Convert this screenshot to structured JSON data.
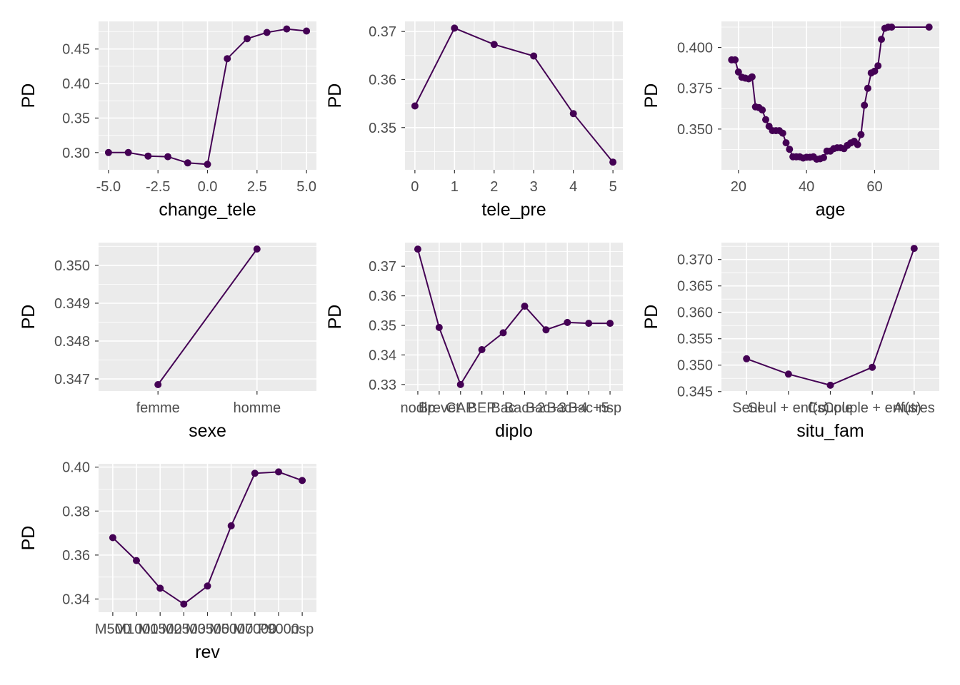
{
  "style": {
    "panel_bg": "#EBEBEB",
    "grid_major": "#FFFFFF",
    "line_color": "#440154",
    "tick_text": "#4D4D4D",
    "title_text": "#000000"
  },
  "chart_data": [
    {
      "type": "line",
      "xlabel": "change_tele",
      "ylabel": "PD",
      "x": [
        -5,
        -4,
        -3,
        -2,
        -1,
        0,
        1,
        2,
        3,
        4,
        5
      ],
      "values": [
        0.3,
        0.3,
        0.295,
        0.294,
        0.285,
        0.283,
        0.436,
        0.465,
        0.474,
        0.479,
        0.476
      ],
      "xlim": [
        -5.5,
        5.5
      ],
      "ylim": [
        0.275,
        0.49
      ],
      "xticks": [
        -5,
        -2.5,
        0,
        2.5,
        5
      ],
      "xtick_labels": [
        "-5.0",
        "-2.5",
        "0.0",
        "2.5",
        "5.0"
      ],
      "yticks": [
        0.3,
        0.35,
        0.4,
        0.45
      ],
      "ytick_labels": [
        "0.30",
        "0.35",
        "0.40",
        "0.45"
      ],
      "grid": true
    },
    {
      "type": "line",
      "xlabel": "tele_pre",
      "ylabel": "PD",
      "x": [
        0,
        1,
        2,
        3,
        4,
        5
      ],
      "values": [
        0.3545,
        0.3707,
        0.3673,
        0.3649,
        0.3529,
        0.3428
      ],
      "xlim": [
        -0.25,
        5.25
      ],
      "ylim": [
        0.3412,
        0.3721
      ],
      "xticks": [
        0,
        1,
        2,
        3,
        4,
        5
      ],
      "xtick_labels": [
        "0",
        "1",
        "2",
        "3",
        "4",
        "5"
      ],
      "yticks": [
        0.35,
        0.36,
        0.37
      ],
      "ytick_labels": [
        "0.35",
        "0.36",
        "0.37"
      ],
      "grid": true
    },
    {
      "type": "line",
      "xlabel": "age",
      "ylabel": "PD",
      "x": [
        18,
        19,
        20,
        21,
        22,
        23,
        24,
        25,
        26,
        27,
        28,
        29,
        30,
        31,
        32,
        33,
        34,
        35,
        36,
        37,
        38,
        39,
        40,
        41,
        42,
        43,
        44,
        45,
        46,
        47,
        48,
        49,
        50,
        51,
        52,
        53,
        54,
        55,
        56,
        57,
        58,
        59,
        60,
        61,
        62,
        63,
        64,
        65,
        76
      ],
      "values": [
        0.3924,
        0.3924,
        0.385,
        0.3818,
        0.3812,
        0.3808,
        0.382,
        0.3636,
        0.3632,
        0.3617,
        0.3558,
        0.3517,
        0.349,
        0.349,
        0.349,
        0.3475,
        0.3416,
        0.3376,
        0.333,
        0.333,
        0.333,
        0.3322,
        0.3327,
        0.3327,
        0.333,
        0.3315,
        0.3318,
        0.3325,
        0.3365,
        0.3365,
        0.338,
        0.3385,
        0.3385,
        0.338,
        0.34,
        0.3415,
        0.3425,
        0.3405,
        0.3466,
        0.3646,
        0.375,
        0.3844,
        0.3855,
        0.3888,
        0.405,
        0.4118,
        0.4125,
        0.4125,
        0.4125
      ],
      "xlim": [
        15,
        79
      ],
      "ylim": [
        0.325,
        0.416
      ],
      "xticks": [
        20,
        40,
        60
      ],
      "xtick_labels": [
        "20",
        "40",
        "60"
      ],
      "yticks": [
        0.35,
        0.375,
        0.4
      ],
      "ytick_labels": [
        "0.350",
        "0.375",
        "0.400"
      ],
      "grid": true
    },
    {
      "type": "line",
      "xlabel": "sexe",
      "ylabel": "PD",
      "categories": [
        "femme",
        "homme"
      ],
      "values": [
        0.34685,
        0.35043
      ],
      "ylim": [
        0.34668,
        0.3506
      ],
      "yticks": [
        0.347,
        0.348,
        0.349,
        0.35
      ],
      "ytick_labels": [
        "0.347",
        "0.348",
        "0.349",
        "0.350"
      ],
      "grid": true
    },
    {
      "type": "line",
      "xlabel": "diplo",
      "ylabel": "PD",
      "categories": [
        "nodip",
        "Brevet",
        "CAP",
        "BEP",
        "Bac",
        "Bac+2",
        "Bac+3",
        "Bac+4",
        "Bac+5",
        "nsp"
      ],
      "tick_labels_display": [
        "nodip",
        "Brevet",
        "CAP",
        "BEP",
        "Bac",
        "Bac+2",
        "Bac+3",
        "Bac+4",
        "Bac+5",
        "nsp"
      ],
      "values": [
        0.3758,
        0.3493,
        0.33,
        0.3418,
        0.3475,
        0.3565,
        0.3485,
        0.351,
        0.3507,
        0.3507
      ],
      "ylim": [
        0.3278,
        0.378
      ],
      "yticks": [
        0.33,
        0.34,
        0.35,
        0.36,
        0.37
      ],
      "ytick_labels": [
        "0.33",
        "0.34",
        "0.35",
        "0.36",
        "0.37"
      ],
      "grid": true
    },
    {
      "type": "line",
      "xlabel": "situ_fam",
      "ylabel": "PD",
      "categories": [
        "Seul",
        "Seul + enf(s)",
        "Couple",
        "Couple + enf(s)",
        "Autres"
      ],
      "values": [
        0.3512,
        0.3483,
        0.3462,
        0.3496,
        0.3721
      ],
      "ylim": [
        0.3451,
        0.3732
      ],
      "yticks": [
        0.345,
        0.35,
        0.355,
        0.36,
        0.365,
        0.37
      ],
      "ytick_labels": [
        "0.345",
        "0.350",
        "0.355",
        "0.360",
        "0.365",
        "0.370"
      ],
      "grid": true
    },
    {
      "type": "line",
      "xlabel": "rev",
      "ylabel": "PD",
      "categories": [
        "M500",
        "M1000",
        "M1500",
        "M2500",
        "M3500",
        "M5000",
        "M7000",
        "P9000",
        "nsp"
      ],
      "tick_labels_display": [
        "M500",
        "M1000",
        "M1500",
        "M2500",
        "M3500",
        "M5000",
        "M7000",
        "P9000",
        "nsp"
      ],
      "values": [
        0.3679,
        0.3575,
        0.3449,
        0.3377,
        0.3459,
        0.3733,
        0.3972,
        0.3978,
        0.3939
      ],
      "ylim": [
        0.334,
        0.4015
      ],
      "yticks": [
        0.34,
        0.36,
        0.38,
        0.4
      ],
      "ytick_labels": [
        "0.34",
        "0.36",
        "0.38",
        "0.40"
      ],
      "grid": true
    }
  ]
}
